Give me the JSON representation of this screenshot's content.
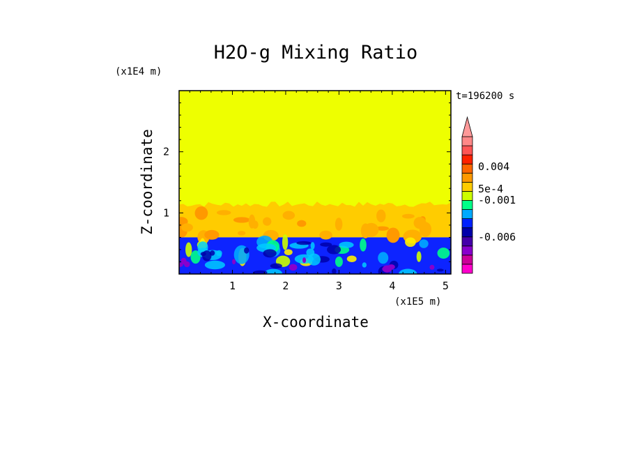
{
  "chart_data": {
    "type": "heatmap",
    "title": "H2O-g Mixing Ratio",
    "xlabel": "X-coordinate",
    "ylabel": "Z-coordinate",
    "x_scale_note": "(x1E5 m)",
    "y_scale_note": "(x1E4 m)",
    "time_label": "t=196200 s",
    "xlim": [
      0.0,
      5.1
    ],
    "ylim": [
      0.0,
      3.0
    ],
    "x_ticks": [
      1,
      2,
      3,
      4,
      5
    ],
    "y_ticks": [
      1,
      2
    ],
    "x_tick_labels": [
      "1",
      "2",
      "3",
      "4",
      "5"
    ],
    "y_tick_labels": [
      "1",
      "2"
    ],
    "regions": [
      {
        "name": "upper",
        "z_range": [
          1.05,
          3.0
        ],
        "color": "#eeff00"
      },
      {
        "name": "transition",
        "z_range": [
          0.6,
          1.05
        ],
        "color": "#ffcc00"
      },
      {
        "name": "lower",
        "z_range": [
          0.0,
          0.6
        ],
        "color": "#0d24ff"
      }
    ],
    "colorbar": {
      "bins": [
        {
          "color": "#ff00cc"
        },
        {
          "color": "#cc0099"
        },
        {
          "color": "#8800cc"
        },
        {
          "color": "#4400aa"
        },
        {
          "color": "#0000aa"
        },
        {
          "color": "#0022ff"
        },
        {
          "color": "#00aaff"
        },
        {
          "color": "#00ff88"
        },
        {
          "color": "#ccff00"
        },
        {
          "color": "#ffcc00"
        },
        {
          "color": "#ff9900"
        },
        {
          "color": "#ff6600"
        },
        {
          "color": "#ff2200"
        },
        {
          "color": "#ff5555"
        },
        {
          "color": "#ff8888"
        }
      ],
      "extend_top_color": "#ff9999",
      "labels": [
        {
          "text": "0.004"
        },
        {
          "text": "5e-4"
        },
        {
          "text": "-0.001"
        },
        {
          "text": "-0.006"
        }
      ]
    }
  }
}
